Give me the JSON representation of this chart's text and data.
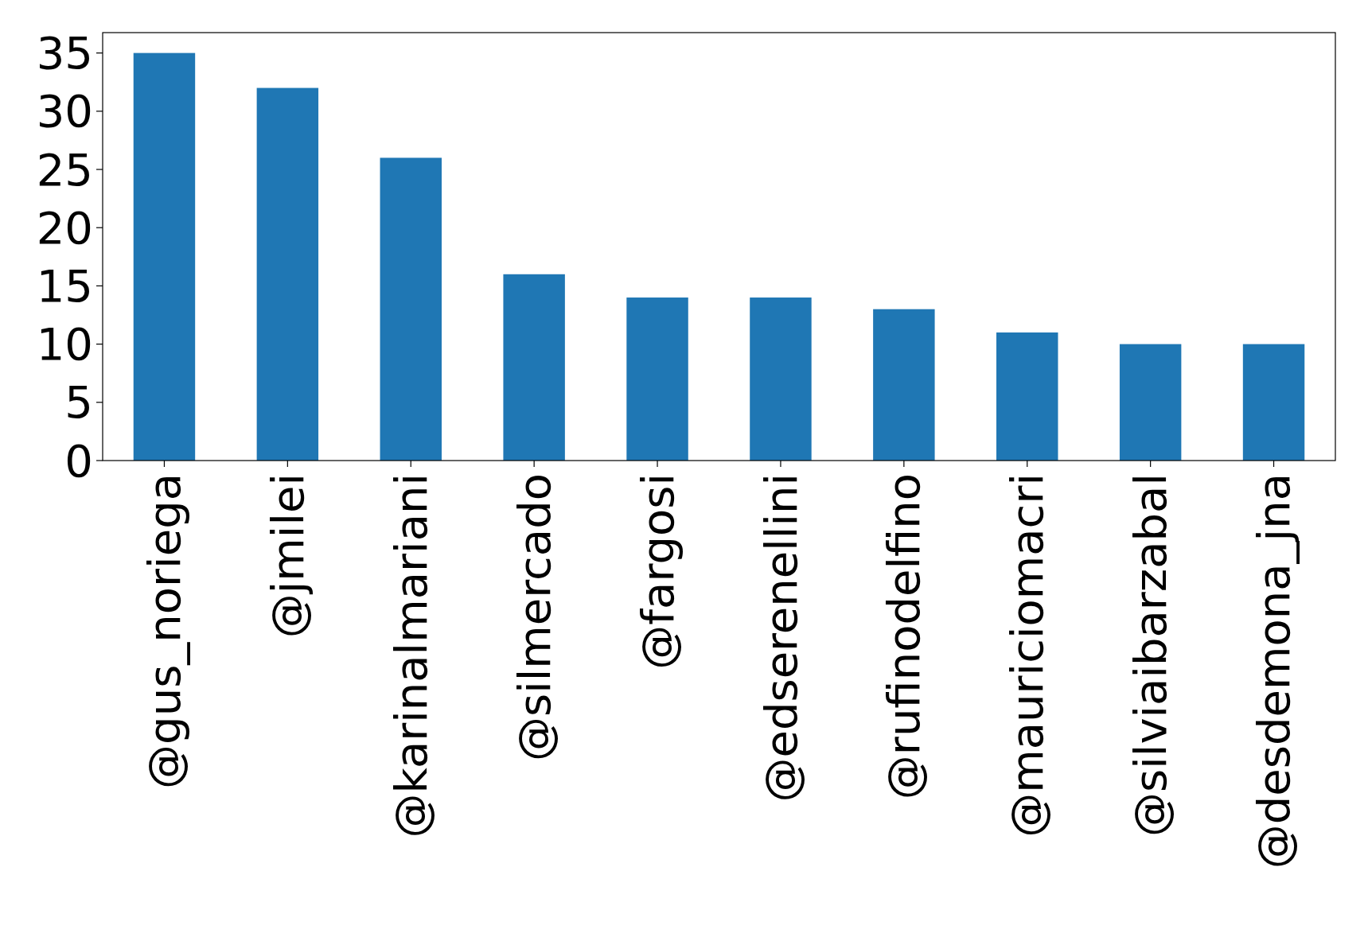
{
  "chart_data": {
    "type": "bar",
    "categories": [
      "@gus_noriega",
      "@jmilei",
      "@karinalmariani",
      "@silmercado",
      "@fargosi",
      "@edserenellini",
      "@rufinodelfino",
      "@mauriciomacri",
      "@silviaibarzabal",
      "@desdemona_jna"
    ],
    "values": [
      35,
      32,
      26,
      16,
      14,
      14,
      13,
      11,
      10,
      10
    ],
    "color": "#1f77b4",
    "ylim": [
      0,
      36.75
    ],
    "yticks": [
      0,
      5,
      10,
      15,
      20,
      25,
      30,
      35
    ]
  }
}
